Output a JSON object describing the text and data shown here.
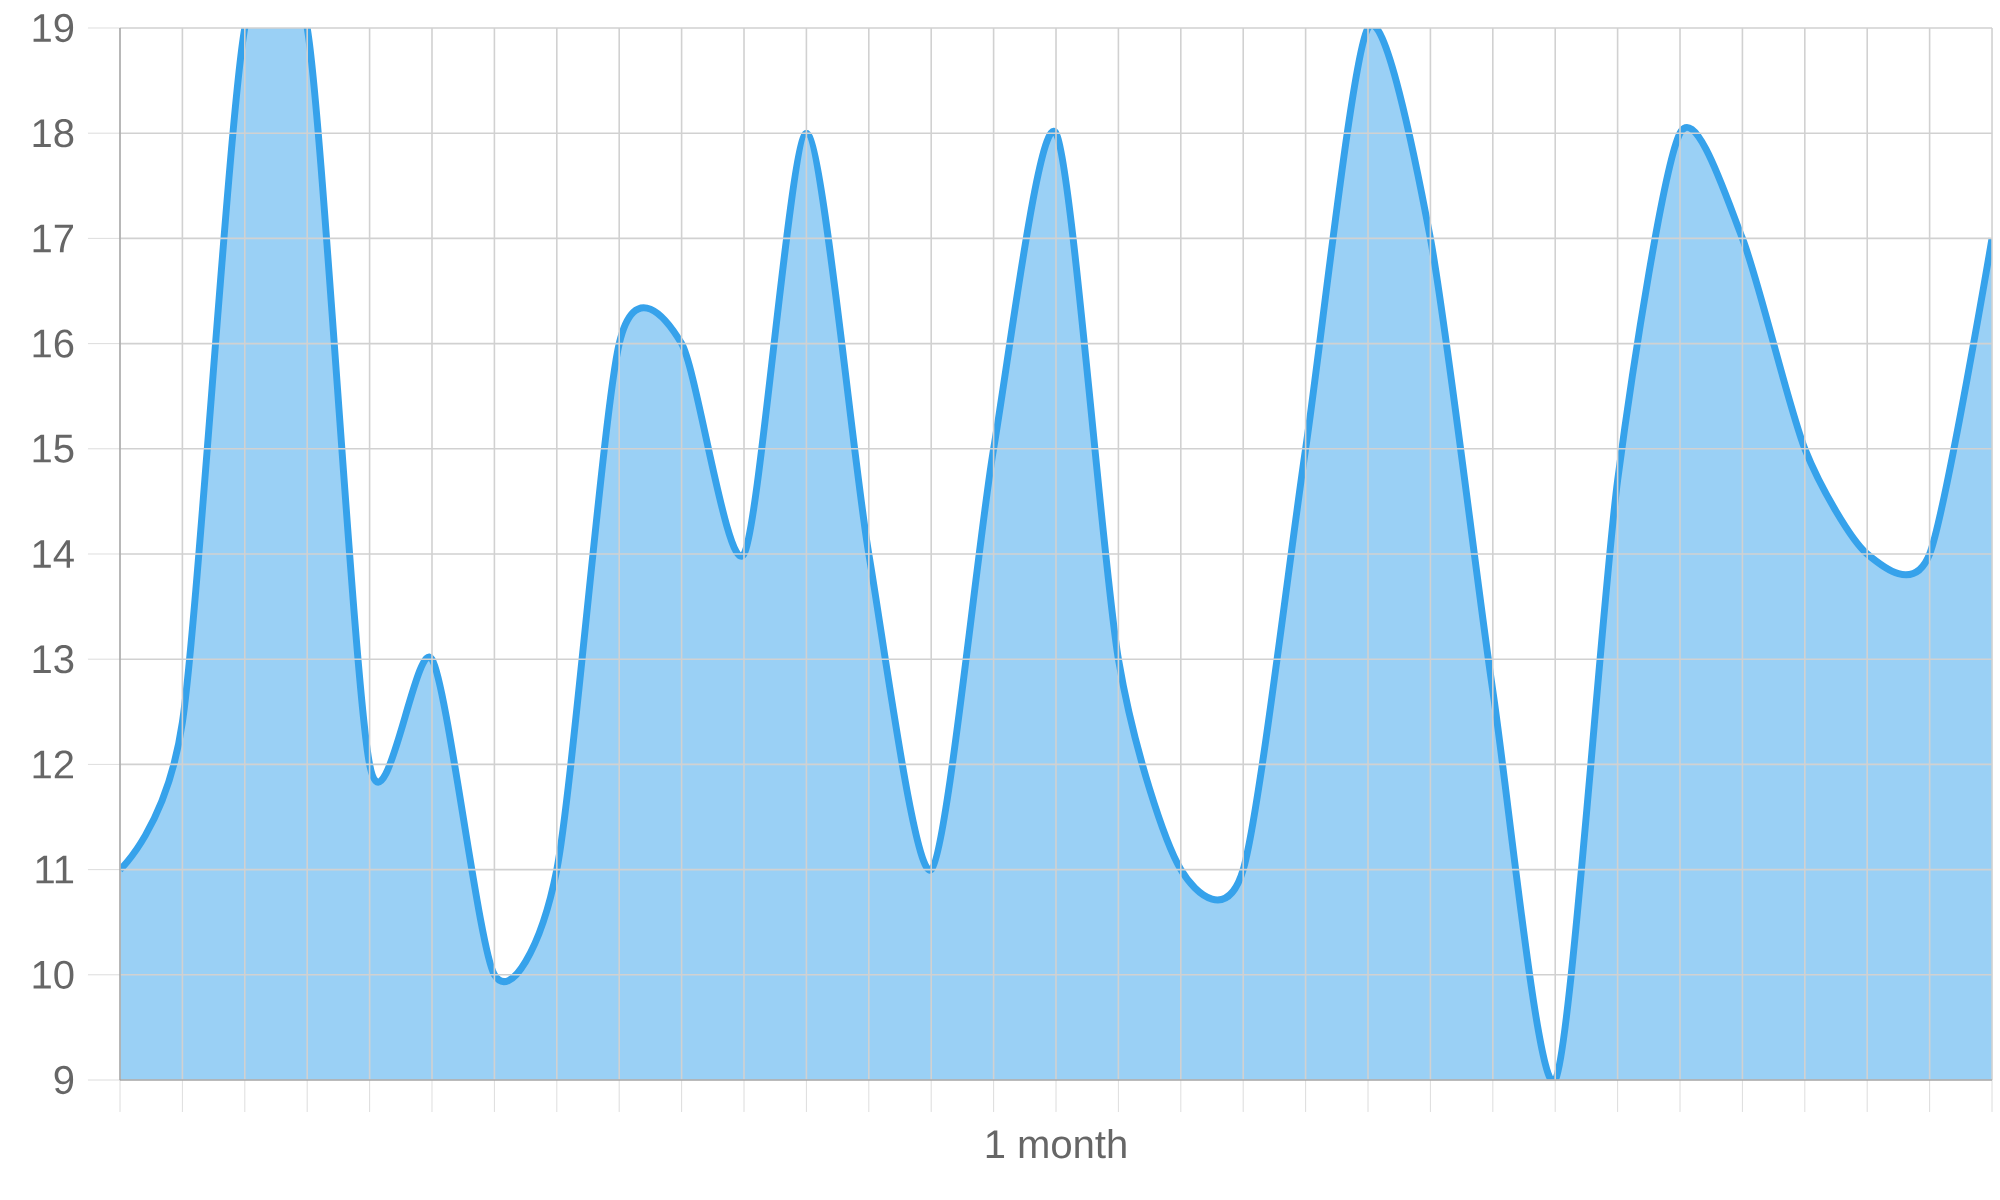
{
  "chart_data": {
    "type": "area",
    "xlabel": "1 month",
    "categories": [
      null,
      null,
      null,
      null,
      null,
      null,
      null,
      null,
      null,
      null,
      null,
      null,
      null,
      null,
      null,
      null,
      null,
      null,
      null,
      null,
      null,
      null,
      null,
      null,
      null,
      null,
      null,
      null,
      null,
      null,
      null
    ],
    "values": [
      11,
      12.4,
      19,
      19,
      12,
      13,
      10,
      11,
      16,
      16,
      14,
      18,
      14,
      11,
      15,
      18,
      13,
      11,
      11,
      15,
      19,
      17,
      12.7,
      9,
      14.7,
      18,
      17,
      15,
      14,
      14,
      17
    ],
    "color": "#36a2eb",
    "ylim": [
      9,
      19
    ],
    "yticks": [
      9,
      10,
      11,
      12,
      13,
      14,
      15,
      16,
      17,
      18,
      19
    ],
    "grid": true,
    "marker": "none",
    "line_style": "solid"
  }
}
